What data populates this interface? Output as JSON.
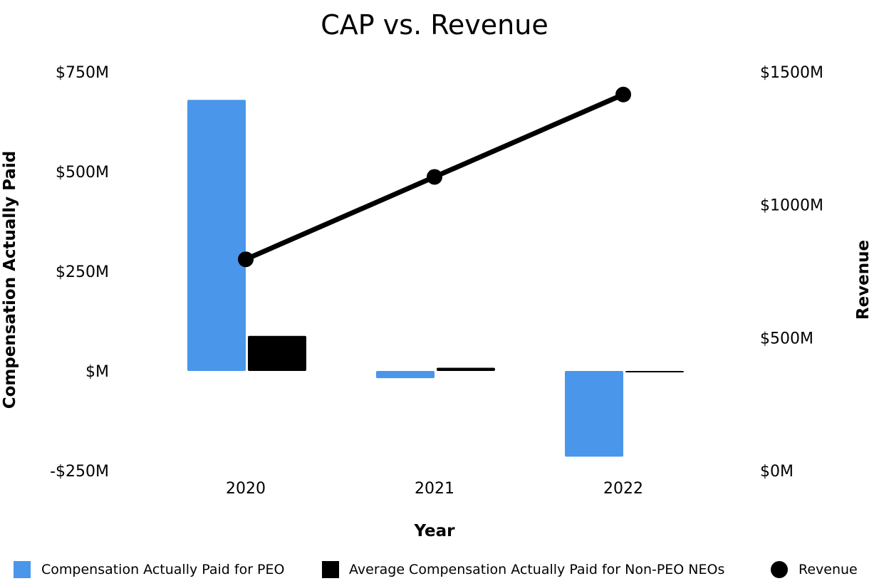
{
  "chart_data": {
    "type": "bar+line",
    "title": "CAP vs. Revenue",
    "xlabel": "Year",
    "ylabel_left": "Compensation Actually Paid",
    "ylabel_right": "Revenue",
    "categories": [
      "2020",
      "2021",
      "2022"
    ],
    "y_left": {
      "range": [
        -250,
        750
      ],
      "ticks": [
        750,
        500,
        250,
        0,
        -250
      ],
      "tick_labels": [
        "$750M",
        "$500M",
        "$250M",
        "$M",
        "-$250M"
      ]
    },
    "y_right": {
      "range": [
        0,
        1500
      ],
      "ticks": [
        1500,
        1000,
        500,
        0
      ],
      "tick_labels": [
        "$1500M",
        "$1000M",
        "$500M",
        "$0M"
      ]
    },
    "series": [
      {
        "name": "Compensation Actually Paid for PEO",
        "type": "bar",
        "axis": "left",
        "color": "#4a96ea",
        "values": [
          680,
          -18,
          -215
        ]
      },
      {
        "name": "Average Compensation Actually Paid for Non-PEO NEOs",
        "type": "bar",
        "axis": "left",
        "color": "#000000",
        "values": [
          88,
          8,
          -2
        ]
      },
      {
        "name": "Revenue",
        "type": "line",
        "axis": "right",
        "color": "#000000",
        "values": [
          795,
          1105,
          1415
        ]
      }
    ],
    "legend_position": "bottom"
  }
}
